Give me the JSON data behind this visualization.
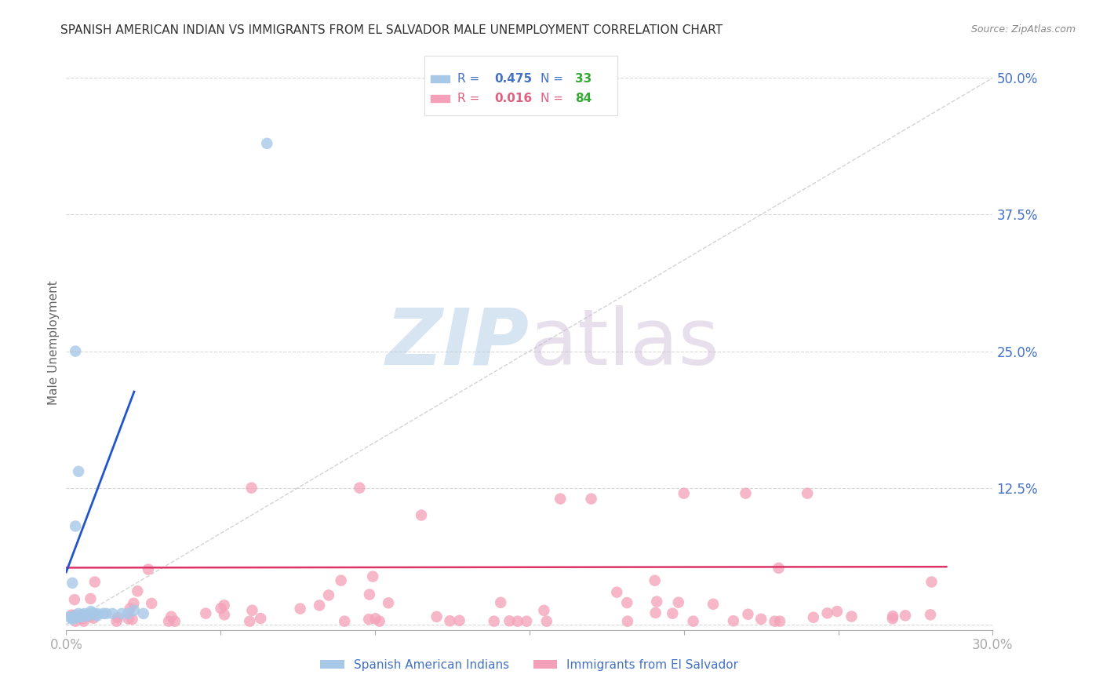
{
  "title": "SPANISH AMERICAN INDIAN VS IMMIGRANTS FROM EL SALVADOR MALE UNEMPLOYMENT CORRELATION CHART",
  "source": "Source: ZipAtlas.com",
  "ylabel": "Male Unemployment",
  "xlim": [
    0.0,
    0.3
  ],
  "ylim": [
    -0.005,
    0.52
  ],
  "ytick_vals": [
    0.0,
    0.125,
    0.25,
    0.375,
    0.5
  ],
  "ytick_labels": [
    "",
    "12.5%",
    "25.0%",
    "37.5%",
    "50.0%"
  ],
  "xtick_vals": [
    0.0,
    0.05,
    0.1,
    0.15,
    0.2,
    0.25,
    0.3
  ],
  "xtick_labels": [
    "0.0%",
    "",
    "",
    "",
    "",
    "",
    "30.0%"
  ],
  "series1_name": "Spanish American Indians",
  "series1_color": "#a8c8e8",
  "series1_R": 0.475,
  "series1_N": 33,
  "series2_name": "Immigrants from El Salvador",
  "series2_color": "#f4a0b8",
  "series2_R": 0.016,
  "series2_N": 84,
  "regression1_color": "#2255cc",
  "regression2_color": "#dd3366",
  "ref_line_color": "#c8c8c8",
  "background_color": "#ffffff",
  "title_color": "#333333",
  "title_fontsize": 11,
  "source_color": "#888888",
  "axis_label_color": "#4472c4",
  "ylabel_color": "#666666",
  "legend_box_color": "#dddddd",
  "R1_color": "#4472c4",
  "R2_color": "#e06080",
  "N1_color": "#33aa33",
  "N2_color": "#33aa33",
  "bottom_legend_color": "#4472c4"
}
